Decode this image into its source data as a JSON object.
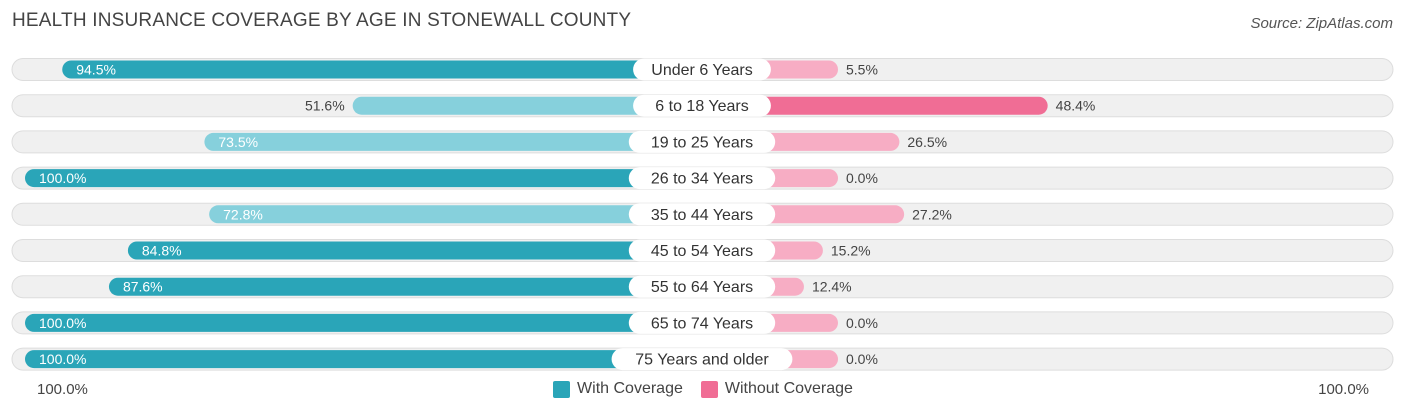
{
  "header": {
    "title": "HEALTH INSURANCE COVERAGE BY AGE IN STONEWALL COUNTY",
    "source": "Source: ZipAtlas.com"
  },
  "axis": {
    "left_label": "100.0%",
    "right_label": "100.0%"
  },
  "legend": {
    "with_label": "With Coverage",
    "without_label": "Without Coverage"
  },
  "colors": {
    "with_dark": "#2aa5b8",
    "with_light": "#86d0dc",
    "without_dark": "#f06d95",
    "without_light": "#f7adc4",
    "track": "#f0f0f0",
    "track_border": "#dddddd"
  },
  "chart_data": {
    "type": "bar",
    "orientation": "horizontal-diverging",
    "title": "HEALTH INSURANCE COVERAGE BY AGE IN STONEWALL COUNTY",
    "xlim": [
      0,
      100
    ],
    "unit": "%",
    "categories": [
      "Under 6 Years",
      "6 to 18 Years",
      "19 to 25 Years",
      "26 to 34 Years",
      "35 to 44 Years",
      "45 to 54 Years",
      "55 to 64 Years",
      "65 to 74 Years",
      "75 Years and older"
    ],
    "series": [
      {
        "name": "With Coverage",
        "values": [
          94.5,
          51.6,
          73.5,
          100.0,
          72.8,
          84.8,
          87.6,
          100.0,
          100.0
        ]
      },
      {
        "name": "Without Coverage",
        "values": [
          5.5,
          48.4,
          26.5,
          0.0,
          27.2,
          15.2,
          12.4,
          0.0,
          0.0
        ]
      }
    ],
    "legend_position": "bottom-center"
  }
}
